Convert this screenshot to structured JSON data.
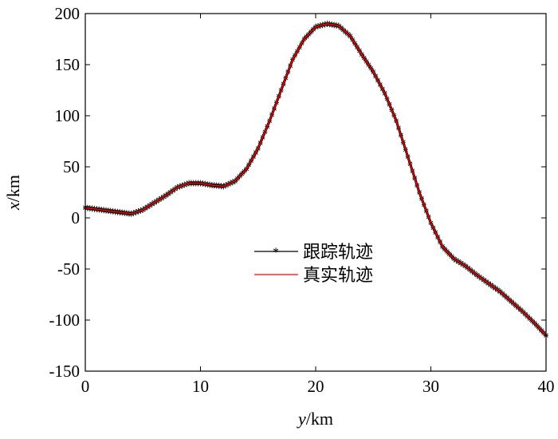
{
  "chart_data": {
    "type": "line",
    "title": "",
    "xlabel_italic": "y",
    "xlabel_unit": "/km",
    "ylabel_italic": "x",
    "ylabel_unit": "/km",
    "xlim": [
      0,
      40
    ],
    "ylim": [
      -150,
      200
    ],
    "xticks": [
      0,
      10,
      20,
      30,
      40
    ],
    "yticks": [
      200,
      150,
      100,
      50,
      0,
      -50,
      -100,
      -150
    ],
    "grid": false,
    "legend_position": "center",
    "series": [
      {
        "name": "跟踪轨迹",
        "color": "#000000",
        "marker": "asterisk",
        "x": [
          0,
          2,
          4,
          5,
          6,
          7,
          8,
          9,
          10,
          11,
          12,
          13,
          14,
          15,
          16,
          17,
          18,
          19,
          20,
          21,
          22,
          23,
          24,
          25,
          26,
          27,
          28,
          29,
          30,
          31,
          32,
          33,
          34,
          35,
          36,
          37,
          38,
          39,
          40
        ],
        "y": [
          10,
          7,
          4,
          8,
          15,
          22,
          30,
          34,
          34,
          32,
          31,
          36,
          48,
          68,
          95,
          125,
          155,
          175,
          187,
          190,
          188,
          178,
          160,
          143,
          122,
          95,
          60,
          25,
          -5,
          -28,
          -40,
          -47,
          -56,
          -64,
          -72,
          -82,
          -92,
          -103,
          -115
        ]
      },
      {
        "name": "真实轨迹",
        "color": "#ff0000",
        "marker": "none",
        "x": [
          0,
          2,
          4,
          5,
          6,
          7,
          8,
          9,
          10,
          11,
          12,
          13,
          14,
          15,
          16,
          17,
          18,
          19,
          20,
          21,
          22,
          23,
          24,
          25,
          26,
          27,
          28,
          29,
          30,
          31,
          32,
          33,
          34,
          35,
          36,
          37,
          38,
          39,
          40
        ],
        "y": [
          10,
          7,
          4,
          8,
          15,
          22,
          30,
          34,
          34,
          32,
          31,
          36,
          48,
          68,
          95,
          125,
          155,
          175,
          187,
          190,
          188,
          178,
          160,
          143,
          122,
          95,
          60,
          25,
          -5,
          -28,
          -40,
          -47,
          -56,
          -64,
          -72,
          -82,
          -92,
          -103,
          -115
        ]
      }
    ]
  }
}
